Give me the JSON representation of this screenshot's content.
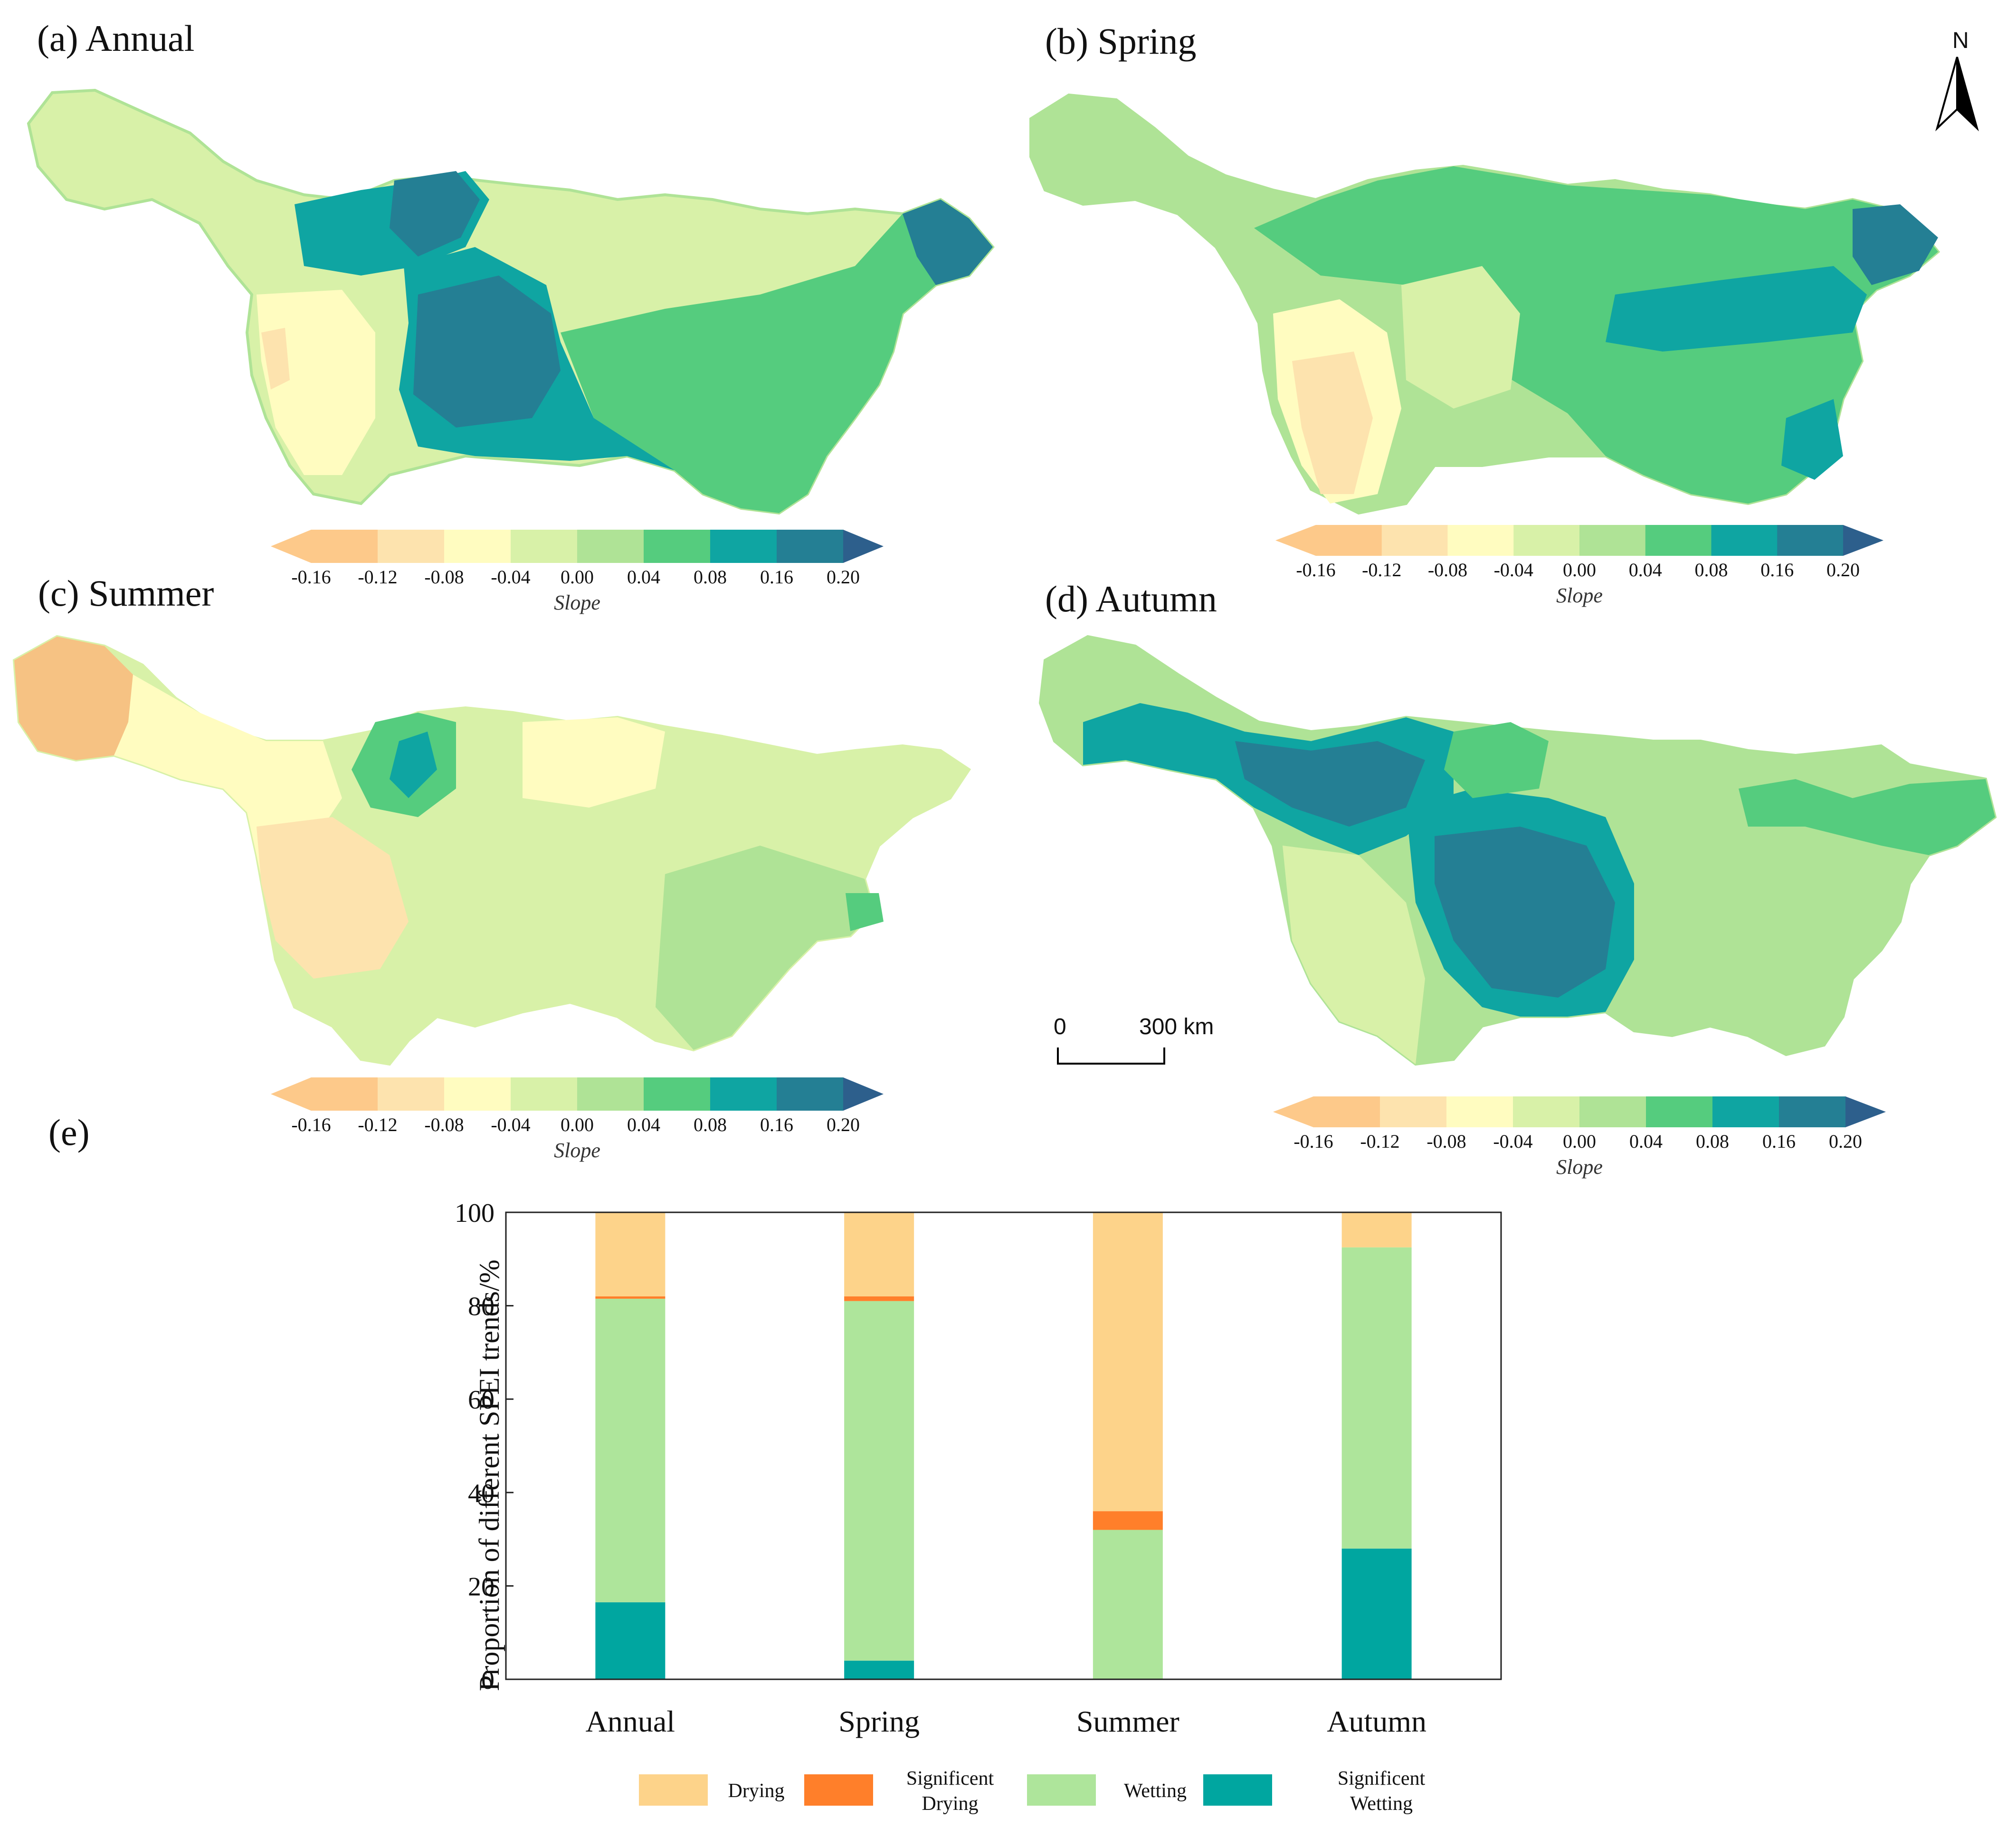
{
  "panels": {
    "a": {
      "title": "(a) Annual"
    },
    "b": {
      "title": "(b) Spring"
    },
    "c": {
      "title": "(c) Summer"
    },
    "d": {
      "title": "(d) Autumn"
    },
    "e": {
      "title": "(e)"
    }
  },
  "north_arrow": {
    "label": "N"
  },
  "scale_bar": {
    "start": "0",
    "end": "300 km"
  },
  "colorbar": {
    "label": "Slope",
    "ticks": [
      "-0.16",
      "-0.12",
      "-0.08",
      "-0.04",
      "0.00",
      "0.04",
      "0.08",
      "0.16",
      "0.20"
    ],
    "colors": [
      "#fdc98a",
      "#fde3ae",
      "#fffcc0",
      "#d8f1a8",
      "#afe396",
      "#55cc7e",
      "#0fa5a2",
      "#247f94"
    ],
    "low_arrow_color": "#fdc98a",
    "high_arrow_color": "#2d5f8c"
  },
  "chart_data": {
    "type": "bar",
    "stacked": true,
    "title": "(e)",
    "categories": [
      "Annual",
      "Spring",
      "Summer",
      "Autumn"
    ],
    "ylabel": "Proportion of different SPEI trends/%",
    "xlabel": "",
    "ylim": [
      0,
      100
    ],
    "yticks": [
      "0",
      "20",
      "40",
      "60",
      "80",
      "100"
    ],
    "series": [
      {
        "name": "Significent Wetting",
        "color": "#00a6a0",
        "values": [
          16.5,
          4,
          0,
          28
        ]
      },
      {
        "name": "Wetting",
        "color": "#aee59b",
        "values": [
          65,
          77,
          32,
          64.5
        ]
      },
      {
        "name": "Significent Drying",
        "color": "#ff7f2a",
        "values": [
          0.5,
          1,
          4,
          0
        ]
      },
      {
        "name": "Drying",
        "color": "#fdd38a",
        "values": [
          18,
          18,
          64,
          7.5
        ]
      }
    ],
    "legend_order": [
      "Drying",
      "Significent Drying",
      "Wetting",
      "Significent Wetting"
    ],
    "legend_labels": [
      "Drying",
      "Significent\nDrying",
      "Wetting",
      "Significent\nWetting"
    ],
    "legend_position": "bottom"
  }
}
